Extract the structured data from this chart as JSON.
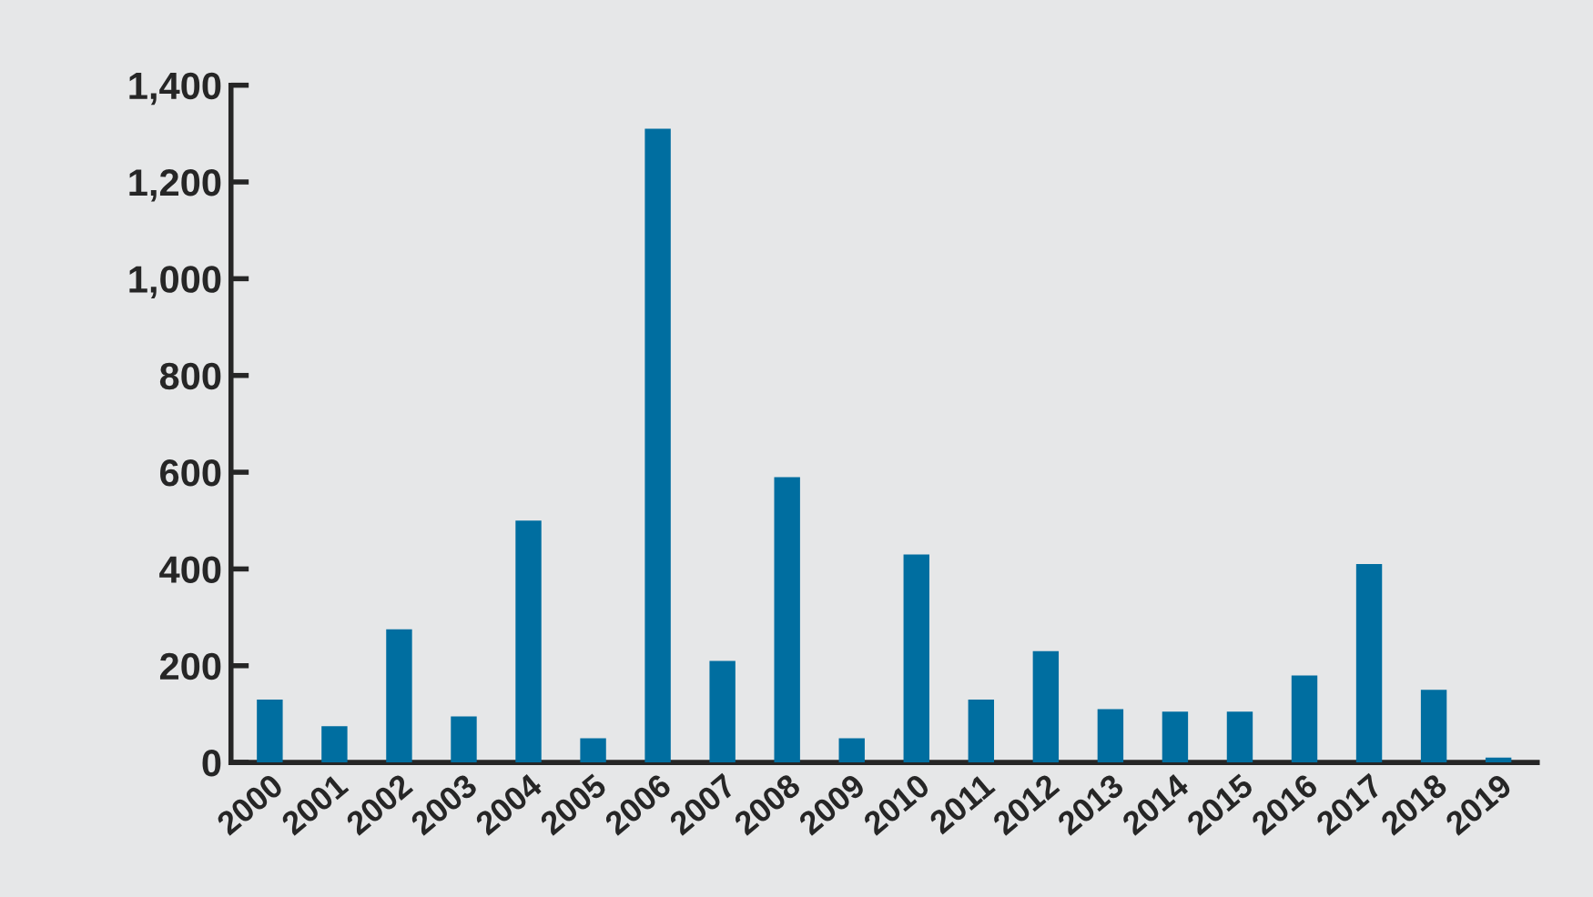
{
  "chart_data": {
    "type": "bar",
    "categories": [
      "2000",
      "2001",
      "2002",
      "2003",
      "2004",
      "2005",
      "2006",
      "2007",
      "2008",
      "2009",
      "2010",
      "2011",
      "2012",
      "2013",
      "2014",
      "2015",
      "2016",
      "2017",
      "2018",
      "2019"
    ],
    "values": [
      130,
      75,
      275,
      95,
      500,
      50,
      1310,
      210,
      590,
      50,
      430,
      130,
      230,
      110,
      105,
      105,
      180,
      410,
      150,
      10
    ],
    "color": "#006ea0",
    "ylim": [
      0,
      1400
    ],
    "yticks": [
      {
        "value": 0,
        "label": "0"
      },
      {
        "value": 200,
        "label": "200"
      },
      {
        "value": 400,
        "label": "400"
      },
      {
        "value": 600,
        "label": "600"
      },
      {
        "value": 800,
        "label": "800"
      },
      {
        "value": 1000,
        "label": "1,000"
      },
      {
        "value": 1200,
        "label": "1,200"
      },
      {
        "value": 1400,
        "label": "1,400"
      }
    ],
    "grid": false
  }
}
